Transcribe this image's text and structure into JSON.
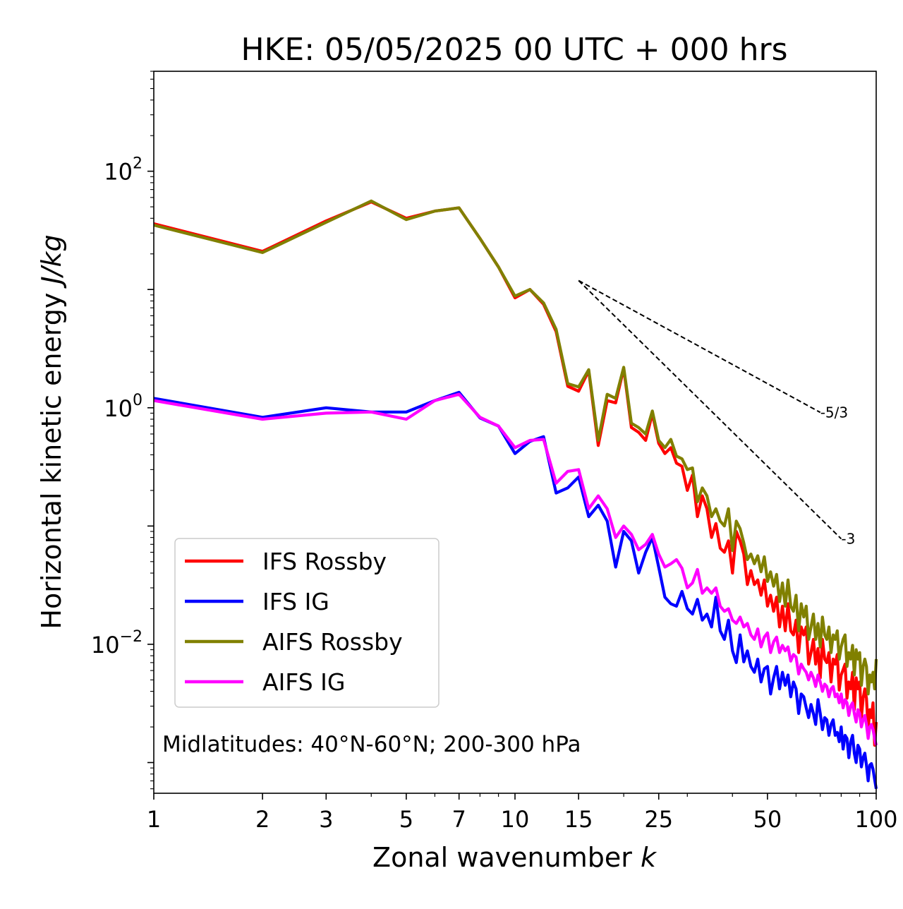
{
  "chart_data": {
    "type": "line",
    "title": "HKE: 05/05/2025 00 UTC + 000 hrs",
    "xlabel": "Zonal wavenumber k",
    "ylabel": "Horizontal kinetic energy J/kg",
    "xscale": "log",
    "yscale": "log",
    "xlim": [
      1,
      100
    ],
    "ylim": [
      0.00055,
      700
    ],
    "x_ticks": [
      1,
      2,
      3,
      5,
      7,
      10,
      15,
      25,
      50,
      100
    ],
    "x_tick_labels": [
      "1",
      "2",
      "3",
      "5",
      "7",
      "10",
      "15",
      "25",
      "50",
      "100"
    ],
    "y_ticks": [
      0.01,
      1,
      100
    ],
    "y_tick_labels": [
      {
        "base": "10",
        "exp": "−2"
      },
      {
        "base": "10",
        "exp": "0"
      },
      {
        "base": "10",
        "exp": "2"
      }
    ],
    "annotation": "Midlatitudes: 40°N-60°N; 200-300 hPa",
    "legend_position": "lower-left",
    "reference_slopes": [
      {
        "label": "-5/3",
        "x": [
          15,
          70
        ],
        "y": [
          11.9,
          0.914
        ]
      },
      {
        "label": "-3",
        "x": [
          15,
          80
        ],
        "y": [
          11.9,
          0.078
        ]
      }
    ],
    "series": [
      {
        "name": "IFS Rossby",
        "color": "#ff0000",
        "x": [
          1,
          2,
          3,
          4,
          5,
          6,
          7,
          8,
          9,
          10,
          11,
          12,
          13,
          14,
          15,
          16,
          17,
          18,
          19,
          20,
          21,
          22,
          23,
          24,
          25,
          26,
          27,
          28,
          29,
          30,
          31,
          32,
          33,
          34,
          35,
          36,
          37,
          38,
          39,
          40,
          41,
          42,
          43,
          44,
          45,
          46,
          47,
          48,
          49,
          50,
          51,
          52,
          53,
          54,
          55,
          56,
          57,
          58,
          59,
          60,
          61,
          62,
          63,
          64,
          65,
          66,
          67,
          68,
          69,
          70,
          71,
          72,
          73,
          74,
          75,
          76,
          77,
          78,
          79,
          80,
          81,
          82,
          83,
          84,
          85,
          86,
          87,
          88,
          89,
          90,
          91,
          92,
          93,
          94,
          95,
          96,
          97,
          98,
          99,
          100
        ],
        "y": [
          36,
          21,
          38,
          55,
          40,
          46,
          49,
          27,
          15.5,
          8.5,
          10,
          7.5,
          4.4,
          1.52,
          1.38,
          2.05,
          0.48,
          1.15,
          1.1,
          2.15,
          0.68,
          0.62,
          0.53,
          0.89,
          0.5,
          0.41,
          0.46,
          0.34,
          0.32,
          0.2,
          0.27,
          0.12,
          0.18,
          0.14,
          0.08,
          0.105,
          0.065,
          0.06,
          0.075,
          0.04,
          0.09,
          0.075,
          0.058,
          0.032,
          0.042,
          0.032,
          0.035,
          0.026,
          0.035,
          0.021,
          0.026,
          0.019,
          0.025,
          0.014,
          0.021,
          0.013,
          0.022,
          0.013,
          0.012,
          0.016,
          0.0085,
          0.014,
          0.012,
          0.014,
          0.0068,
          0.0085,
          0.011,
          0.0068,
          0.0092,
          0.0052,
          0.011,
          0.0075,
          0.007,
          0.0085,
          0.0048,
          0.0075,
          0.0068,
          0.0082,
          0.0041,
          0.0055,
          0.0061,
          0.0068,
          0.0035,
          0.0048,
          0.0042,
          0.0058,
          0.0028,
          0.0052,
          0.0042,
          0.0048,
          0.0024,
          0.0035,
          0.0042,
          0.0035,
          0.0019,
          0.0028,
          0.0024,
          0.0032,
          0.0014,
          0.0022
        ]
      },
      {
        "name": "IFS IG",
        "color": "#0000ff",
        "x": [
          1,
          2,
          3,
          4,
          5,
          6,
          7,
          8,
          9,
          10,
          11,
          12,
          13,
          14,
          15,
          16,
          17,
          18,
          19,
          20,
          21,
          22,
          23,
          24,
          25,
          26,
          27,
          28,
          29,
          30,
          31,
          32,
          33,
          34,
          35,
          36,
          37,
          38,
          39,
          40,
          41,
          42,
          43,
          44,
          45,
          46,
          47,
          48,
          49,
          50,
          51,
          52,
          53,
          54,
          55,
          56,
          57,
          58,
          59,
          60,
          61,
          62,
          63,
          64,
          65,
          66,
          67,
          68,
          69,
          70,
          71,
          72,
          73,
          74,
          75,
          76,
          77,
          78,
          79,
          80,
          81,
          82,
          83,
          84,
          85,
          86,
          87,
          88,
          89,
          90,
          91,
          92,
          93,
          94,
          95,
          96,
          97,
          98,
          99,
          100
        ],
        "y": [
          1.2,
          0.83,
          1.0,
          0.92,
          0.92,
          1.15,
          1.35,
          0.82,
          0.7,
          0.41,
          0.52,
          0.57,
          0.19,
          0.21,
          0.26,
          0.12,
          0.15,
          0.11,
          0.045,
          0.09,
          0.075,
          0.04,
          0.06,
          0.08,
          0.045,
          0.025,
          0.022,
          0.021,
          0.028,
          0.02,
          0.018,
          0.024,
          0.016,
          0.018,
          0.014,
          0.025,
          0.013,
          0.011,
          0.016,
          0.0088,
          0.007,
          0.012,
          0.0071,
          0.0088,
          0.0065,
          0.0058,
          0.0075,
          0.0048,
          0.0062,
          0.0065,
          0.0038,
          0.0052,
          0.0065,
          0.0042,
          0.0058,
          0.0045,
          0.0055,
          0.0036,
          0.0048,
          0.0042,
          0.0026,
          0.0038,
          0.0036,
          0.0029,
          0.0024,
          0.0031,
          0.0026,
          0.0021,
          0.0034,
          0.0026,
          0.0019,
          0.0024,
          0.0023,
          0.0017,
          0.0021,
          0.0023,
          0.0017,
          0.0018,
          0.0015,
          0.002,
          0.0013,
          0.0017,
          0.0016,
          0.0011,
          0.0015,
          0.0017,
          0.0012,
          0.001,
          0.0014,
          0.0013,
          0.00092,
          0.0011,
          0.0012,
          0.00095,
          0.0007,
          0.00095,
          0.00098,
          0.00088,
          0.00072,
          0.0006
        ]
      },
      {
        "name": "AIFS Rossby",
        "color": "#808000",
        "x": [
          1,
          2,
          3,
          4,
          5,
          6,
          7,
          8,
          9,
          10,
          11,
          12,
          13,
          14,
          15,
          16,
          17,
          18,
          19,
          20,
          21,
          22,
          23,
          24,
          25,
          26,
          27,
          28,
          29,
          30,
          31,
          32,
          33,
          34,
          35,
          36,
          37,
          38,
          39,
          40,
          41,
          42,
          43,
          44,
          45,
          46,
          47,
          48,
          49,
          50,
          51,
          52,
          53,
          54,
          55,
          56,
          57,
          58,
          59,
          60,
          61,
          62,
          63,
          64,
          65,
          66,
          67,
          68,
          69,
          70,
          71,
          72,
          73,
          74,
          75,
          76,
          77,
          78,
          79,
          80,
          81,
          82,
          83,
          84,
          85,
          86,
          87,
          88,
          89,
          90,
          91,
          92,
          93,
          94,
          95,
          96,
          97,
          98,
          99,
          100
        ],
        "y": [
          35,
          20.5,
          37,
          56,
          39,
          46,
          49,
          27,
          15.5,
          8.8,
          10,
          7.7,
          4.6,
          1.6,
          1.5,
          2.1,
          0.53,
          1.3,
          1.2,
          2.2,
          0.74,
          0.68,
          0.6,
          0.94,
          0.53,
          0.46,
          0.54,
          0.39,
          0.37,
          0.3,
          0.31,
          0.16,
          0.21,
          0.18,
          0.12,
          0.14,
          0.11,
          0.1,
          0.14,
          0.062,
          0.11,
          0.095,
          0.072,
          0.052,
          0.058,
          0.048,
          0.056,
          0.041,
          0.055,
          0.034,
          0.041,
          0.031,
          0.039,
          0.023,
          0.033,
          0.021,
          0.035,
          0.021,
          0.019,
          0.026,
          0.013,
          0.022,
          0.017,
          0.021,
          0.011,
          0.014,
          0.018,
          0.011,
          0.015,
          0.0095,
          0.017,
          0.012,
          0.011,
          0.014,
          0.0085,
          0.012,
          0.011,
          0.013,
          0.0075,
          0.0095,
          0.011,
          0.012,
          0.0065,
          0.0085,
          0.0075,
          0.0098,
          0.0055,
          0.009,
          0.0075,
          0.0085,
          0.0045,
          0.0065,
          0.0075,
          0.0065,
          0.0038,
          0.0055,
          0.0048,
          0.0058,
          0.0042,
          0.0075
        ]
      },
      {
        "name": "AIFS IG",
        "color": "#ff00ff",
        "x": [
          1,
          2,
          3,
          4,
          5,
          6,
          7,
          8,
          9,
          10,
          11,
          12,
          13,
          14,
          15,
          16,
          17,
          18,
          19,
          20,
          21,
          22,
          23,
          24,
          25,
          26,
          27,
          28,
          29,
          30,
          31,
          32,
          33,
          34,
          35,
          36,
          37,
          38,
          39,
          40,
          41,
          42,
          43,
          44,
          45,
          46,
          47,
          48,
          49,
          50,
          51,
          52,
          53,
          54,
          55,
          56,
          57,
          58,
          59,
          60,
          61,
          62,
          63,
          64,
          65,
          66,
          67,
          68,
          69,
          70,
          71,
          72,
          73,
          74,
          75,
          76,
          77,
          78,
          79,
          80,
          81,
          82,
          83,
          84,
          85,
          86,
          87,
          88,
          89,
          90,
          91,
          92,
          93,
          94,
          95,
          96,
          97,
          98,
          99,
          100
        ],
        "y": [
          1.15,
          0.8,
          0.9,
          0.92,
          0.8,
          1.15,
          1.3,
          0.83,
          0.7,
          0.46,
          0.53,
          0.54,
          0.23,
          0.29,
          0.3,
          0.14,
          0.18,
          0.14,
          0.08,
          0.1,
          0.085,
          0.063,
          0.07,
          0.085,
          0.058,
          0.045,
          0.048,
          0.052,
          0.044,
          0.03,
          0.033,
          0.043,
          0.027,
          0.03,
          0.027,
          0.03,
          0.021,
          0.019,
          0.02,
          0.016,
          0.015,
          0.017,
          0.014,
          0.015,
          0.012,
          0.011,
          0.0135,
          0.0095,
          0.0115,
          0.0125,
          0.0085,
          0.0105,
          0.0115,
          0.0085,
          0.0098,
          0.0088,
          0.0095,
          0.0072,
          0.0082,
          0.0078,
          0.0056,
          0.0068,
          0.0062,
          0.0058,
          0.005,
          0.0058,
          0.0052,
          0.0044,
          0.0055,
          0.0048,
          0.004,
          0.0046,
          0.0044,
          0.0036,
          0.0042,
          0.0044,
          0.0036,
          0.0038,
          0.0032,
          0.0038,
          0.0029,
          0.0034,
          0.0032,
          0.0025,
          0.003,
          0.0032,
          0.0026,
          0.0022,
          0.0028,
          0.0026,
          0.002,
          0.0023,
          0.0025,
          0.0021,
          0.0016,
          0.002,
          0.0021,
          0.0019,
          0.0016,
          0.0014
        ]
      }
    ]
  }
}
